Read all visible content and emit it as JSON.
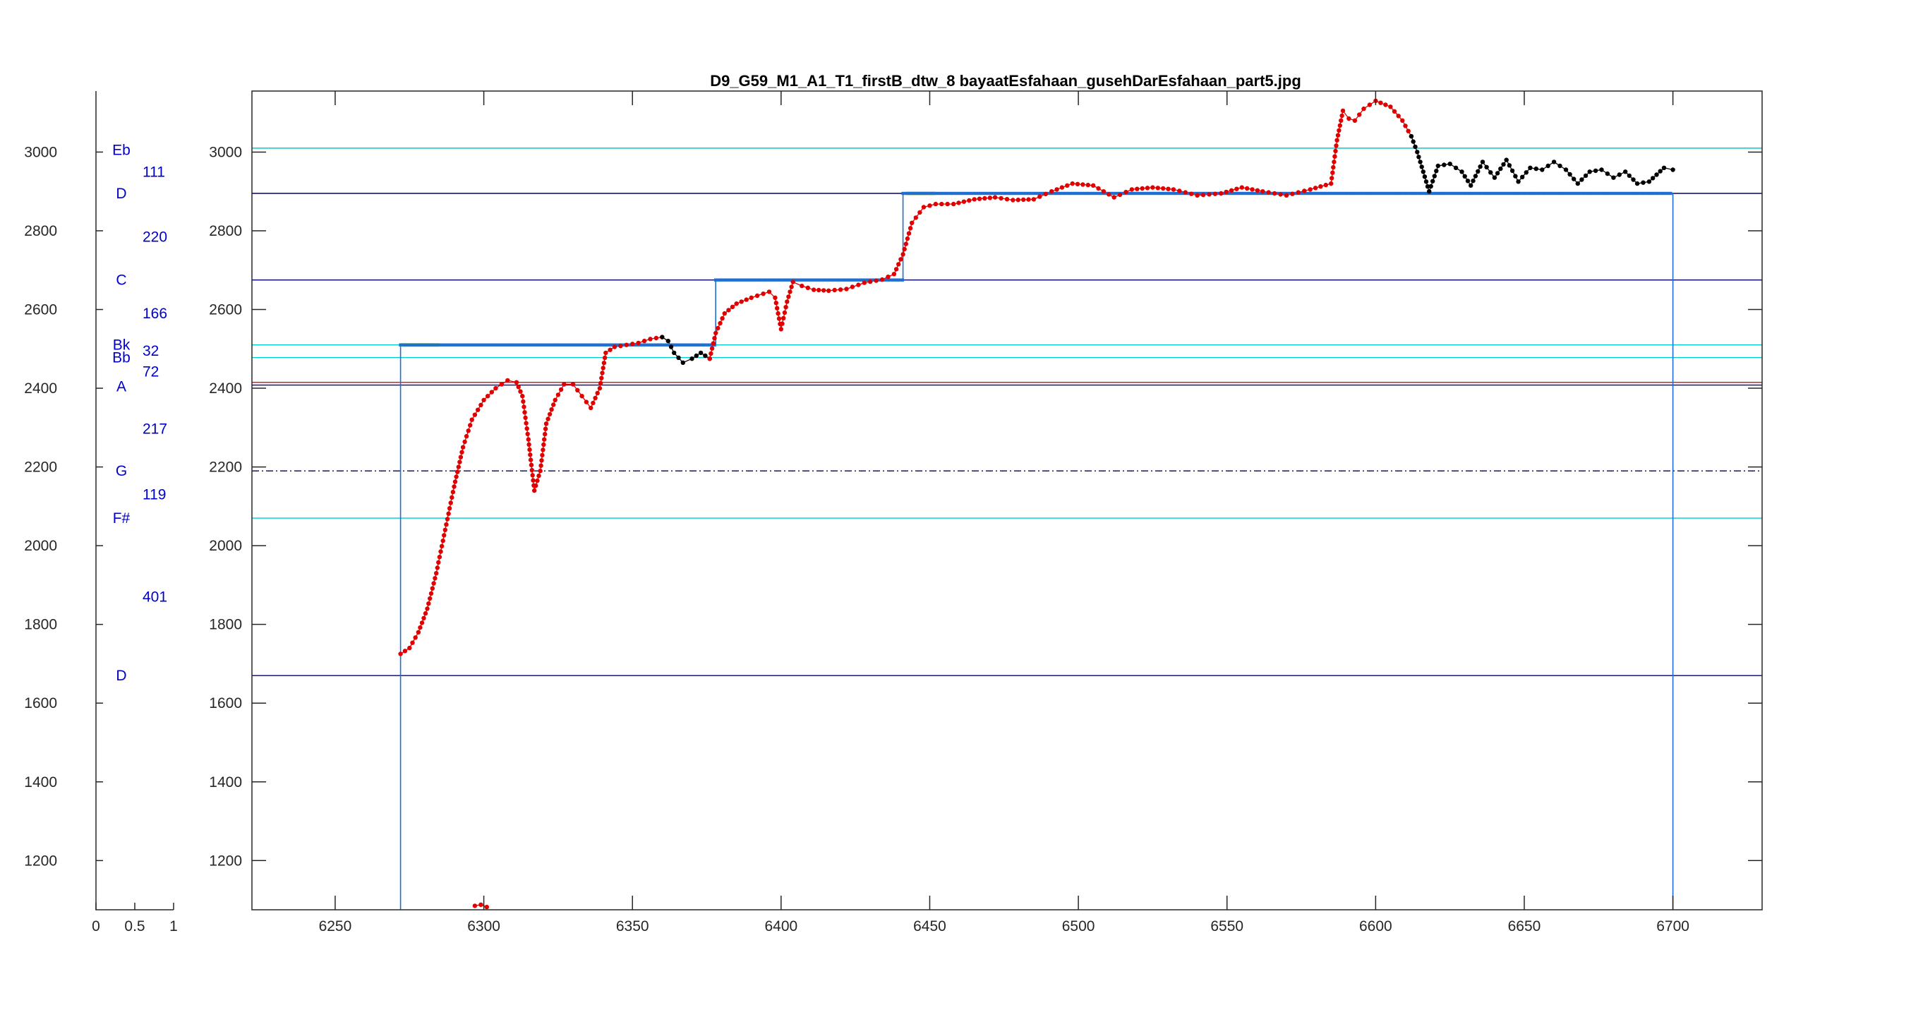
{
  "chart_data": [
    {
      "type": "bar",
      "name": "note-panel",
      "xlim": [
        0,
        1
      ],
      "x_ticks": [
        "0",
        "0.5",
        "1"
      ],
      "ylim": [
        1075,
        3155
      ],
      "y_ticks": [
        1200,
        1400,
        1600,
        1800,
        2000,
        2200,
        2400,
        2600,
        2800,
        3000
      ],
      "note_labels": [
        {
          "label": "Eb",
          "y": 3005
        },
        {
          "label": "D",
          "y": 2895
        },
        {
          "label": "C",
          "y": 2675
        },
        {
          "label": "Bk",
          "y": 2510
        },
        {
          "label": "Bb",
          "y": 2478
        },
        {
          "label": "A",
          "y": 2405
        },
        {
          "label": "G",
          "y": 2190
        },
        {
          "label": "F#",
          "y": 2070
        },
        {
          "label": "D",
          "y": 1670
        }
      ],
      "interval_labels": [
        {
          "label": "111",
          "y": 2950
        },
        {
          "label": "220",
          "y": 2785
        },
        {
          "label": "166",
          "y": 2590
        },
        {
          "label": "32",
          "y": 2495
        },
        {
          "label": "72",
          "y": 2442
        },
        {
          "label": "217",
          "y": 2297
        },
        {
          "label": "119",
          "y": 2130
        },
        {
          "label": "401",
          "y": 1870
        }
      ]
    },
    {
      "type": "line",
      "title": "D9_G59_M1_A1_T1_firstB_dtw_8 bayaatEsfahaan_gusehDarEsfahaan_part5.jpg",
      "xlim": [
        6222,
        6730
      ],
      "ylim": [
        1075,
        3155
      ],
      "x_ticks": [
        6250,
        6300,
        6350,
        6400,
        6450,
        6500,
        6550,
        6600,
        6650,
        6700
      ],
      "y_ticks": [
        1200,
        1400,
        1600,
        1800,
        2000,
        2200,
        2400,
        2600,
        2800,
        3000
      ],
      "grid": false,
      "reference_lines": [
        {
          "y": 3010,
          "color": "#00cccc"
        },
        {
          "y": 2895,
          "color": "#000066"
        },
        {
          "y": 2675,
          "color": "#000066"
        },
        {
          "y": 2510,
          "color": "#00cccc"
        },
        {
          "y": 2478,
          "color": "#00cccc"
        },
        {
          "y": 2415,
          "color": "#ff0000"
        },
        {
          "y": 2408,
          "color": "#0000aa"
        },
        {
          "y": 2190,
          "color": "#000066",
          "dashed": true
        },
        {
          "y": 2070,
          "color": "#00cccc"
        },
        {
          "y": 1670,
          "color": "#000080"
        }
      ],
      "segments": [
        {
          "name": "target-notes",
          "color": "#1f6fd1",
          "marker": "square",
          "step": true,
          "points": [
            [
              6272,
              1075
            ],
            [
              6272,
              2510
            ],
            [
              6378,
              2510
            ],
            [
              6378,
              2675
            ],
            [
              6441,
              2675
            ],
            [
              6441,
              2895
            ],
            [
              6700,
              2895
            ],
            [
              6700,
              1075
            ]
          ]
        },
        {
          "name": "onset-1",
          "color": "#b5e61d",
          "points": [
            [
              6272,
              2510
            ],
            [
              6285,
              2510
            ]
          ]
        },
        {
          "name": "onset-2",
          "color": "#b5e61d",
          "points": [
            [
              6442,
              2895
            ],
            [
              6452,
              2895
            ]
          ]
        },
        {
          "name": "pitch-1",
          "color": "#e00000",
          "points": [
            [
              6272,
              1725
            ],
            [
              6275,
              1740
            ],
            [
              6278,
              1780
            ],
            [
              6281,
              1840
            ],
            [
              6284,
              1930
            ],
            [
              6287,
              2040
            ],
            [
              6290,
              2150
            ],
            [
              6293,
              2250
            ],
            [
              6296,
              2320
            ],
            [
              6300,
              2370
            ],
            [
              6304,
              2400
            ],
            [
              6308,
              2420
            ],
            [
              6311,
              2415
            ],
            [
              6313,
              2380
            ],
            [
              6315,
              2270
            ],
            [
              6317,
              2140
            ],
            [
              6319,
              2190
            ],
            [
              6321,
              2310
            ],
            [
              6324,
              2370
            ],
            [
              6327,
              2410
            ],
            [
              6330,
              2410
            ],
            [
              6333,
              2380
            ],
            [
              6336,
              2350
            ],
            [
              6339,
              2400
            ],
            [
              6341,
              2490
            ],
            [
              6344,
              2505
            ],
            [
              6348,
              2510
            ],
            [
              6352,
              2515
            ],
            [
              6356,
              2525
            ],
            [
              6360,
              2530
            ]
          ]
        },
        {
          "name": "pitch-2",
          "color": "#000000",
          "points": [
            [
              6360,
              2530
            ],
            [
              6362,
              2520
            ],
            [
              6364,
              2490
            ],
            [
              6367,
              2465
            ],
            [
              6370,
              2475
            ],
            [
              6373,
              2490
            ],
            [
              6376,
              2475
            ]
          ]
        },
        {
          "name": "pitch-3",
          "color": "#e00000",
          "points": [
            [
              6376,
              2475
            ],
            [
              6378,
              2540
            ],
            [
              6381,
              2590
            ],
            [
              6385,
              2615
            ],
            [
              6390,
              2630
            ],
            [
              6396,
              2645
            ],
            [
              6398,
              2630
            ],
            [
              6400,
              2550
            ],
            [
              6402,
              2620
            ],
            [
              6404,
              2670
            ],
            [
              6407,
              2660
            ],
            [
              6411,
              2650
            ],
            [
              6416,
              2648
            ],
            [
              6422,
              2652
            ],
            [
              6428,
              2668
            ],
            [
              6434,
              2676
            ],
            [
              6438,
              2690
            ],
            [
              6441,
              2740
            ],
            [
              6444,
              2820
            ],
            [
              6448,
              2860
            ],
            [
              6452,
              2868
            ],
            [
              6458,
              2868
            ],
            [
              6465,
              2880
            ],
            [
              6472,
              2885
            ],
            [
              6478,
              2878
            ],
            [
              6485,
              2880
            ],
            [
              6491,
              2900
            ],
            [
              6498,
              2920
            ],
            [
              6505,
              2915
            ],
            [
              6512,
              2885
            ],
            [
              6518,
              2905
            ],
            [
              6525,
              2910
            ],
            [
              6532,
              2905
            ],
            [
              6540,
              2890
            ],
            [
              6548,
              2895
            ],
            [
              6555,
              2910
            ],
            [
              6562,
              2900
            ],
            [
              6570,
              2890
            ],
            [
              6578,
              2905
            ],
            [
              6585,
              2920
            ],
            [
              6587,
              3030
            ],
            [
              6589,
              3105
            ],
            [
              6591,
              3085
            ],
            [
              6593,
              3080
            ],
            [
              6596,
              3110
            ],
            [
              6600,
              3130
            ],
            [
              6605,
              3115
            ],
            [
              6609,
              3080
            ],
            [
              6612,
              3040
            ]
          ]
        },
        {
          "name": "pitch-4",
          "color": "#000000",
          "points": [
            [
              6612,
              3040
            ],
            [
              6614,
              3000
            ],
            [
              6616,
              2950
            ],
            [
              6618,
              2900
            ],
            [
              6621,
              2965
            ],
            [
              6625,
              2970
            ],
            [
              6629,
              2950
            ],
            [
              6632,
              2915
            ],
            [
              6636,
              2975
            ],
            [
              6640,
              2935
            ],
            [
              6644,
              2980
            ],
            [
              6648,
              2925
            ],
            [
              6652,
              2960
            ],
            [
              6656,
              2955
            ],
            [
              6660,
              2975
            ],
            [
              6664,
              2955
            ],
            [
              6668,
              2920
            ],
            [
              6672,
              2950
            ],
            [
              6676,
              2955
            ],
            [
              6680,
              2935
            ],
            [
              6684,
              2950
            ],
            [
              6688,
              2920
            ],
            [
              6692,
              2925
            ],
            [
              6697,
              2960
            ],
            [
              6700,
              2955
            ]
          ]
        },
        {
          "name": "pitch-5",
          "color": "#e00000",
          "points": [
            [
              6297,
              1085
            ],
            [
              6299,
              1088
            ],
            [
              6301,
              1082
            ]
          ]
        }
      ]
    }
  ]
}
